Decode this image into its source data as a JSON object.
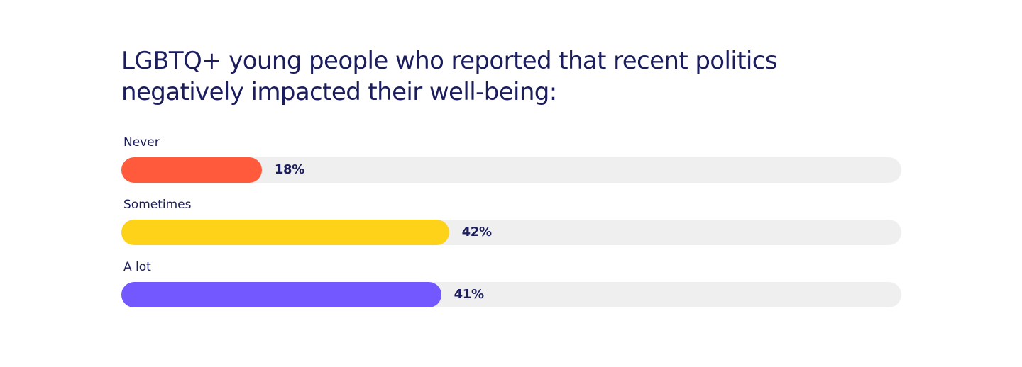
{
  "chart_data": {
    "type": "bar",
    "orientation": "horizontal",
    "title": "LGBTQ+ young people who reported that recent politics negatively impacted their well-being:",
    "categories": [
      "Never",
      "Sometimes",
      "A lot"
    ],
    "values": [
      18,
      42,
      41
    ],
    "value_labels": [
      "18%",
      "42%",
      "41%"
    ],
    "unit": "%",
    "xlim": [
      0,
      100
    ],
    "colors": [
      "#ff5a3c",
      "#ffd21a",
      "#7357ff"
    ],
    "track_color": "#efefef",
    "grid": false
  }
}
